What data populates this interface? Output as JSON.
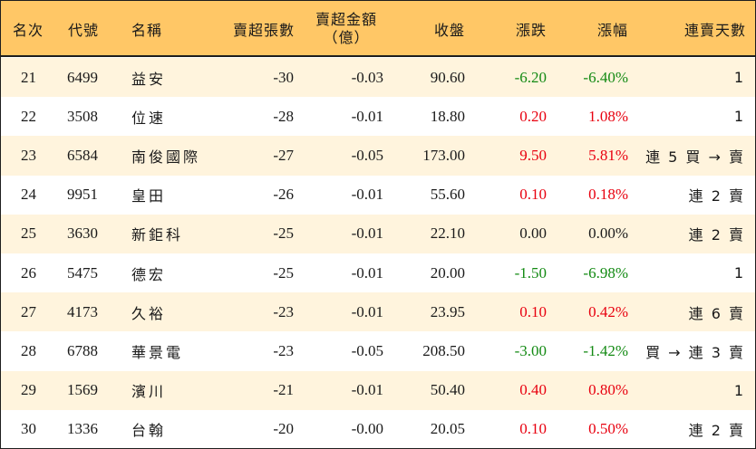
{
  "headers": {
    "rank": "名次",
    "code": "代號",
    "name": "名稱",
    "net_sell_lots": "賣超張數",
    "net_sell_amount_line1": "賣超金額",
    "net_sell_amount_line2": "（億）",
    "close": "收盤",
    "change": "漲跌",
    "change_pct": "漲幅",
    "consecutive_days": "連賣天數"
  },
  "colors": {
    "header_bg": "#ffc766",
    "alt_row_bg": "#fff4dd",
    "up": "#e8000f",
    "down": "#138a13"
  },
  "rows": [
    {
      "rank": "21",
      "code": "6499",
      "name": "益安",
      "lots": "-30",
      "amount": "-0.03",
      "close": "90.60",
      "change": "-6.20",
      "pct": "-6.40%",
      "trend": "down",
      "days": "1"
    },
    {
      "rank": "22",
      "code": "3508",
      "name": "位速",
      "lots": "-28",
      "amount": "-0.01",
      "close": "18.80",
      "change": "0.20",
      "pct": "1.08%",
      "trend": "up",
      "days": "1"
    },
    {
      "rank": "23",
      "code": "6584",
      "name": "南俊國際",
      "lots": "-27",
      "amount": "-0.05",
      "close": "173.00",
      "change": "9.50",
      "pct": "5.81%",
      "trend": "up",
      "days": "連 5 買 → 賣"
    },
    {
      "rank": "24",
      "code": "9951",
      "name": "皇田",
      "lots": "-26",
      "amount": "-0.01",
      "close": "55.60",
      "change": "0.10",
      "pct": "0.18%",
      "trend": "up",
      "days": "連 2 賣"
    },
    {
      "rank": "25",
      "code": "3630",
      "name": "新鉅科",
      "lots": "-25",
      "amount": "-0.01",
      "close": "22.10",
      "change": "0.00",
      "pct": "0.00%",
      "trend": "flat",
      "days": "連 2 賣"
    },
    {
      "rank": "26",
      "code": "5475",
      "name": "德宏",
      "lots": "-25",
      "amount": "-0.01",
      "close": "20.00",
      "change": "-1.50",
      "pct": "-6.98%",
      "trend": "down",
      "days": "1"
    },
    {
      "rank": "27",
      "code": "4173",
      "name": "久裕",
      "lots": "-23",
      "amount": "-0.01",
      "close": "23.95",
      "change": "0.10",
      "pct": "0.42%",
      "trend": "up",
      "days": "連 6 賣"
    },
    {
      "rank": "28",
      "code": "6788",
      "name": "華景電",
      "lots": "-23",
      "amount": "-0.05",
      "close": "208.50",
      "change": "-3.00",
      "pct": "-1.42%",
      "trend": "down",
      "days": "買 → 連 3 賣"
    },
    {
      "rank": "29",
      "code": "1569",
      "name": "濱川",
      "lots": "-21",
      "amount": "-0.01",
      "close": "50.40",
      "change": "0.40",
      "pct": "0.80%",
      "trend": "up",
      "days": "1"
    },
    {
      "rank": "30",
      "code": "1336",
      "name": "台翰",
      "lots": "-20",
      "amount": "-0.00",
      "close": "20.05",
      "change": "0.10",
      "pct": "0.50%",
      "trend": "up",
      "days": "連 2 賣"
    }
  ]
}
